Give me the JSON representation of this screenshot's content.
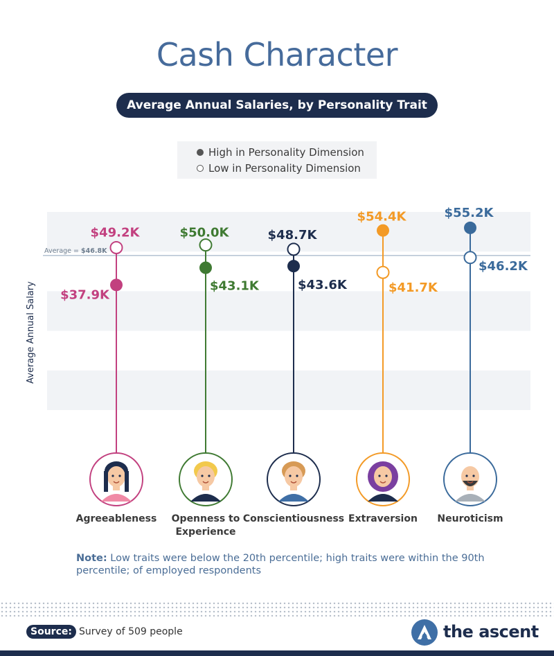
{
  "header": {
    "title": "Cash Character",
    "subtitle": "Average Annual Salaries, by Personality Trait"
  },
  "legend": {
    "high": "High in Personality Dimension",
    "low": "Low in Personality Dimension"
  },
  "chart_data": {
    "type": "scatter",
    "ylabel": "Average Annual Salary",
    "ylim": [
      0,
      60
    ],
    "average": {
      "label_prefix": "Average = ",
      "label_value": "$46.8K",
      "value": 46.8
    },
    "categories": [
      "Agreeableness",
      "Openness to Experience",
      "Conscientiousness",
      "Extraversion",
      "Neuroticism"
    ],
    "series": [
      {
        "name": "High in Personality Dimension",
        "marker": "filled",
        "values": [
          37.9,
          43.1,
          43.6,
          54.4,
          55.2
        ],
        "labels": [
          "$37.9K",
          "$43.1K",
          "$43.6K",
          "$54.4K",
          "$55.2K"
        ]
      },
      {
        "name": "Low in Personality Dimension",
        "marker": "hollow",
        "values": [
          49.2,
          50.0,
          48.7,
          41.7,
          46.2
        ],
        "labels": [
          "$49.2K",
          "$50.0K",
          "$48.7K",
          "$41.7K",
          "$46.2K"
        ]
      }
    ],
    "trait_label_lines": [
      [
        "Agreeableness"
      ],
      [
        "Openness to",
        "Experience"
      ],
      [
        "Conscientiousness"
      ],
      [
        "Extraversion"
      ],
      [
        "Neuroticism"
      ]
    ],
    "colors": [
      "#c2407f",
      "#3f7a32",
      "#1d2d4d",
      "#f39a26",
      "#3a6a9b"
    ],
    "grid": true
  },
  "note": {
    "label": "Note:",
    "text": "Low traits were below the 20th percentile; high traits were within the 90th percentile; of employed respondents"
  },
  "footer": {
    "source_label": "Source:",
    "source_text": "Survey of 509 people",
    "brand": "the ascent"
  }
}
